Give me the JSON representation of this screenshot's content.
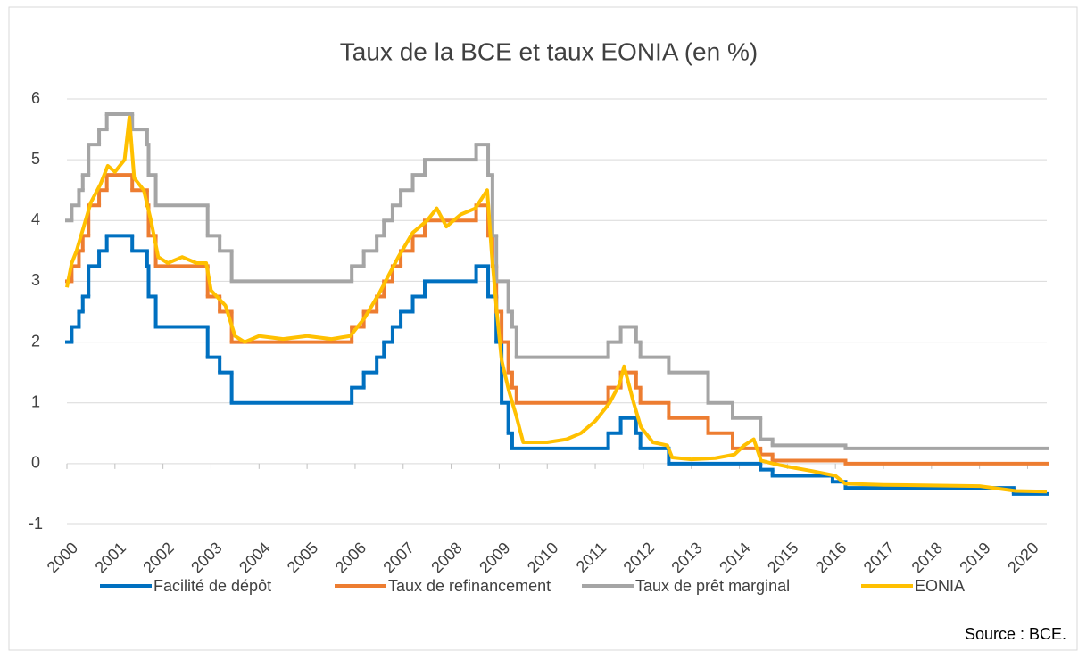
{
  "chart_data": {
    "type": "line",
    "title": "Taux de la BCE et taux EONIA (en %)",
    "source": "Source : BCE.",
    "xlim": [
      2000,
      2020.4
    ],
    "xticks": [
      2000,
      2001,
      2002,
      2003,
      2004,
      2005,
      2006,
      2007,
      2008,
      2009,
      2010,
      2011,
      2012,
      2013,
      2014,
      2015,
      2016,
      2017,
      2018,
      2019,
      2020
    ],
    "ylim": [
      -1,
      6
    ],
    "yticks": [
      -1,
      0,
      1,
      2,
      3,
      4,
      5,
      6
    ],
    "grid": true,
    "legend": "bottom",
    "series": [
      {
        "name": "Facilité de dépôt",
        "color": "#0070c0",
        "step": true,
        "x": [
          2000,
          2000.1,
          2000.25,
          2000.33,
          2000.45,
          2000.67,
          2000.83,
          2001.36,
          2001.67,
          2001.7,
          2001.85,
          2002.93,
          2003.18,
          2003.43,
          2005.93,
          2006.18,
          2006.45,
          2006.6,
          2006.78,
          2006.95,
          2007.2,
          2007.45,
          2008.52,
          2008.77,
          2008.86,
          2008.94,
          2009.05,
          2009.19,
          2009.27,
          2011.27,
          2011.53,
          2011.85,
          2011.94,
          2012.53,
          2014.44,
          2014.69,
          2015.94,
          2016.21,
          2019.71
        ],
        "values": [
          2.0,
          2.25,
          2.5,
          2.75,
          3.25,
          3.5,
          3.75,
          3.5,
          3.25,
          2.75,
          2.25,
          1.75,
          1.5,
          1.0,
          1.25,
          1.5,
          1.75,
          2.0,
          2.25,
          2.5,
          2.75,
          3.0,
          3.25,
          2.75,
          2.75,
          2.0,
          1.0,
          0.5,
          0.25,
          0.5,
          0.75,
          0.5,
          0.25,
          0,
          -0.1,
          -0.2,
          -0.3,
          -0.4,
          -0.5
        ]
      },
      {
        "name": "Taux de refinancement",
        "color": "#ed7d31",
        "step": true,
        "x": [
          2000,
          2000.1,
          2000.25,
          2000.33,
          2000.45,
          2000.67,
          2000.83,
          2001.36,
          2001.67,
          2001.7,
          2001.85,
          2002.93,
          2003.18,
          2003.43,
          2005.93,
          2006.18,
          2006.45,
          2006.6,
          2006.78,
          2006.95,
          2007.2,
          2007.45,
          2008.52,
          2008.77,
          2008.86,
          2008.94,
          2009.05,
          2009.19,
          2009.27,
          2009.36,
          2011.27,
          2011.53,
          2011.85,
          2011.94,
          2012.53,
          2013.35,
          2013.86,
          2014.44,
          2014.69,
          2016.21
        ],
        "values": [
          3.0,
          3.25,
          3.5,
          3.75,
          4.25,
          4.5,
          4.75,
          4.5,
          4.25,
          3.75,
          3.25,
          2.75,
          2.5,
          2.0,
          2.25,
          2.5,
          2.75,
          3.0,
          3.25,
          3.5,
          3.75,
          4.0,
          4.25,
          3.75,
          3.25,
          2.5,
          2.0,
          1.5,
          1.25,
          1.0,
          1.25,
          1.5,
          1.25,
          1.0,
          0.75,
          0.5,
          0.25,
          0.15,
          0.05,
          0
        ]
      },
      {
        "name": "Taux de prêt marginal",
        "color": "#a5a5a5",
        "step": true,
        "x": [
          2000,
          2000.1,
          2000.25,
          2000.33,
          2000.45,
          2000.67,
          2000.83,
          2001.36,
          2001.67,
          2001.7,
          2001.85,
          2002.93,
          2003.18,
          2003.43,
          2005.93,
          2006.18,
          2006.45,
          2006.6,
          2006.78,
          2006.95,
          2007.2,
          2007.45,
          2008.52,
          2008.77,
          2008.86,
          2008.94,
          2009.19,
          2009.27,
          2009.36,
          2011.27,
          2011.53,
          2011.85,
          2011.94,
          2012.53,
          2013.35,
          2013.86,
          2014.44,
          2014.69,
          2016.21
        ],
        "values": [
          4.0,
          4.25,
          4.5,
          4.75,
          5.25,
          5.5,
          5.75,
          5.5,
          5.25,
          4.75,
          4.25,
          3.75,
          3.5,
          3.0,
          3.25,
          3.5,
          3.75,
          4.0,
          4.25,
          4.5,
          4.75,
          5.0,
          5.25,
          4.75,
          3.75,
          3.0,
          2.5,
          2.25,
          1.75,
          2.0,
          2.25,
          2.0,
          1.75,
          1.5,
          1.0,
          0.75,
          0.4,
          0.3,
          0.25
        ]
      },
      {
        "name": "EONIA",
        "color": "#ffc000",
        "step": false,
        "x": [
          2000,
          2000.1,
          2000.2,
          2000.35,
          2000.5,
          2000.7,
          2000.85,
          2001.0,
          2001.2,
          2001.3,
          2001.4,
          2001.6,
          2001.75,
          2001.9,
          2002.1,
          2002.4,
          2002.7,
          2002.9,
          2003.0,
          2003.3,
          2003.5,
          2003.7,
          2004.0,
          2004.5,
          2005.0,
          2005.5,
          2005.9,
          2006.2,
          2006.5,
          2006.7,
          2006.9,
          2007.2,
          2007.5,
          2007.7,
          2007.9,
          2008.2,
          2008.5,
          2008.75,
          2008.85,
          2008.95,
          2009.05,
          2009.2,
          2009.35,
          2009.5,
          2010.0,
          2010.4,
          2010.7,
          2011.0,
          2011.3,
          2011.5,
          2011.6,
          2011.8,
          2011.95,
          2012.2,
          2012.5,
          2012.6,
          2013.0,
          2013.5,
          2013.9,
          2014.1,
          2014.3,
          2014.45,
          2014.7,
          2015.0,
          2015.5,
          2016.0,
          2016.2,
          2017.0,
          2018.0,
          2019.0,
          2019.75,
          2020.4
        ],
        "values": [
          2.9,
          3.3,
          3.5,
          3.9,
          4.3,
          4.6,
          4.9,
          4.8,
          5.0,
          5.7,
          4.7,
          4.5,
          4.0,
          3.4,
          3.3,
          3.4,
          3.3,
          3.3,
          2.85,
          2.6,
          2.1,
          2.0,
          2.1,
          2.05,
          2.1,
          2.05,
          2.1,
          2.4,
          2.8,
          3.1,
          3.4,
          3.8,
          4.0,
          4.2,
          3.9,
          4.1,
          4.2,
          4.5,
          3.4,
          2.5,
          1.7,
          1.2,
          0.8,
          0.35,
          0.35,
          0.4,
          0.5,
          0.7,
          1.0,
          1.3,
          1.6,
          1.0,
          0.6,
          0.35,
          0.3,
          0.1,
          0.07,
          0.09,
          0.15,
          0.3,
          0.4,
          0.05,
          0.0,
          -0.05,
          -0.12,
          -0.2,
          -0.33,
          -0.35,
          -0.36,
          -0.37,
          -0.45,
          -0.46
        ]
      }
    ]
  }
}
